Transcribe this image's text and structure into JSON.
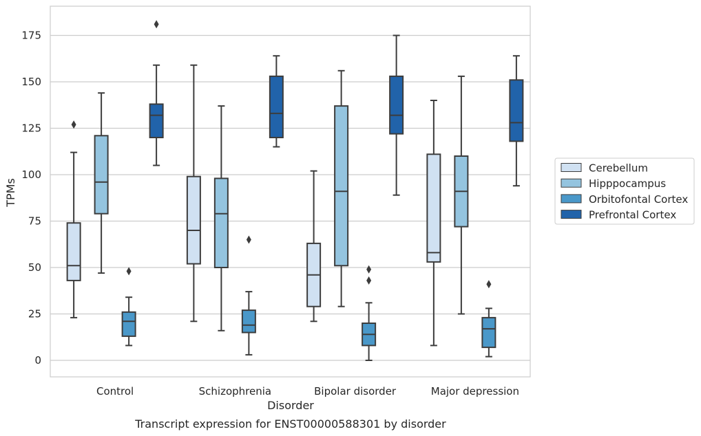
{
  "chart_data": {
    "type": "box",
    "caption": "Transcript expression for ENST00000588301 by disorder",
    "xlabel": "Disorder",
    "ylabel": "TPMs",
    "ylim": [
      -9,
      190
    ],
    "yticks": [
      0,
      25,
      50,
      75,
      100,
      125,
      150,
      175
    ],
    "grid": "horizontal",
    "legend_position": "right",
    "categories": [
      "Control",
      "Schizophrenia",
      "Bipolar disorder",
      "Major depression"
    ],
    "series": [
      {
        "name": "Cerebellum",
        "color": "#d0e1f2",
        "boxes": [
          {
            "whislo": 23,
            "q1": 43,
            "med": 51,
            "q3": 74,
            "whishi": 112,
            "fliers": [
              127
            ]
          },
          {
            "whislo": 21,
            "q1": 52,
            "med": 70,
            "q3": 99,
            "whishi": 159,
            "fliers": []
          },
          {
            "whislo": 21,
            "q1": 29,
            "med": 46,
            "q3": 63,
            "whishi": 102,
            "fliers": []
          },
          {
            "whislo": 8,
            "q1": 53,
            "med": 58,
            "q3": 111,
            "whishi": 140,
            "fliers": []
          }
        ]
      },
      {
        "name": "Hipppocampus",
        "color": "#94c4df",
        "boxes": [
          {
            "whislo": 47,
            "q1": 79,
            "med": 96,
            "q3": 121,
            "whishi": 144,
            "fliers": []
          },
          {
            "whislo": 16,
            "q1": 50,
            "med": 79,
            "q3": 98,
            "whishi": 137,
            "fliers": []
          },
          {
            "whislo": 29,
            "q1": 51,
            "med": 91,
            "q3": 137,
            "whishi": 156,
            "fliers": []
          },
          {
            "whislo": 25,
            "q1": 72,
            "med": 91,
            "q3": 110,
            "whishi": 153,
            "fliers": []
          }
        ]
      },
      {
        "name": "Orbitofontal Cortex",
        "color": "#4a98c9",
        "boxes": [
          {
            "whislo": 8,
            "q1": 13,
            "med": 21,
            "q3": 26,
            "whishi": 34,
            "fliers": [
              48
            ]
          },
          {
            "whislo": 3,
            "q1": 15,
            "med": 19,
            "q3": 27,
            "whishi": 37,
            "fliers": [
              65
            ]
          },
          {
            "whislo": 0,
            "q1": 8,
            "med": 14,
            "q3": 20,
            "whishi": 31,
            "fliers": [
              43,
              49
            ]
          },
          {
            "whislo": 2,
            "q1": 7,
            "med": 17,
            "q3": 23,
            "whishi": 28,
            "fliers": [
              41
            ]
          }
        ]
      },
      {
        "name": "Prefrontal Cortex",
        "color": "#2163aa",
        "boxes": [
          {
            "whislo": 105,
            "q1": 120,
            "med": 132,
            "q3": 138,
            "whishi": 159,
            "fliers": [
              181
            ]
          },
          {
            "whislo": 115,
            "q1": 120,
            "med": 133,
            "q3": 153,
            "whishi": 164,
            "fliers": []
          },
          {
            "whislo": 89,
            "q1": 122,
            "med": 132,
            "q3": 153,
            "whishi": 175,
            "fliers": []
          },
          {
            "whislo": 94,
            "q1": 118,
            "med": 128,
            "q3": 151,
            "whishi": 164,
            "fliers": []
          }
        ]
      }
    ]
  }
}
